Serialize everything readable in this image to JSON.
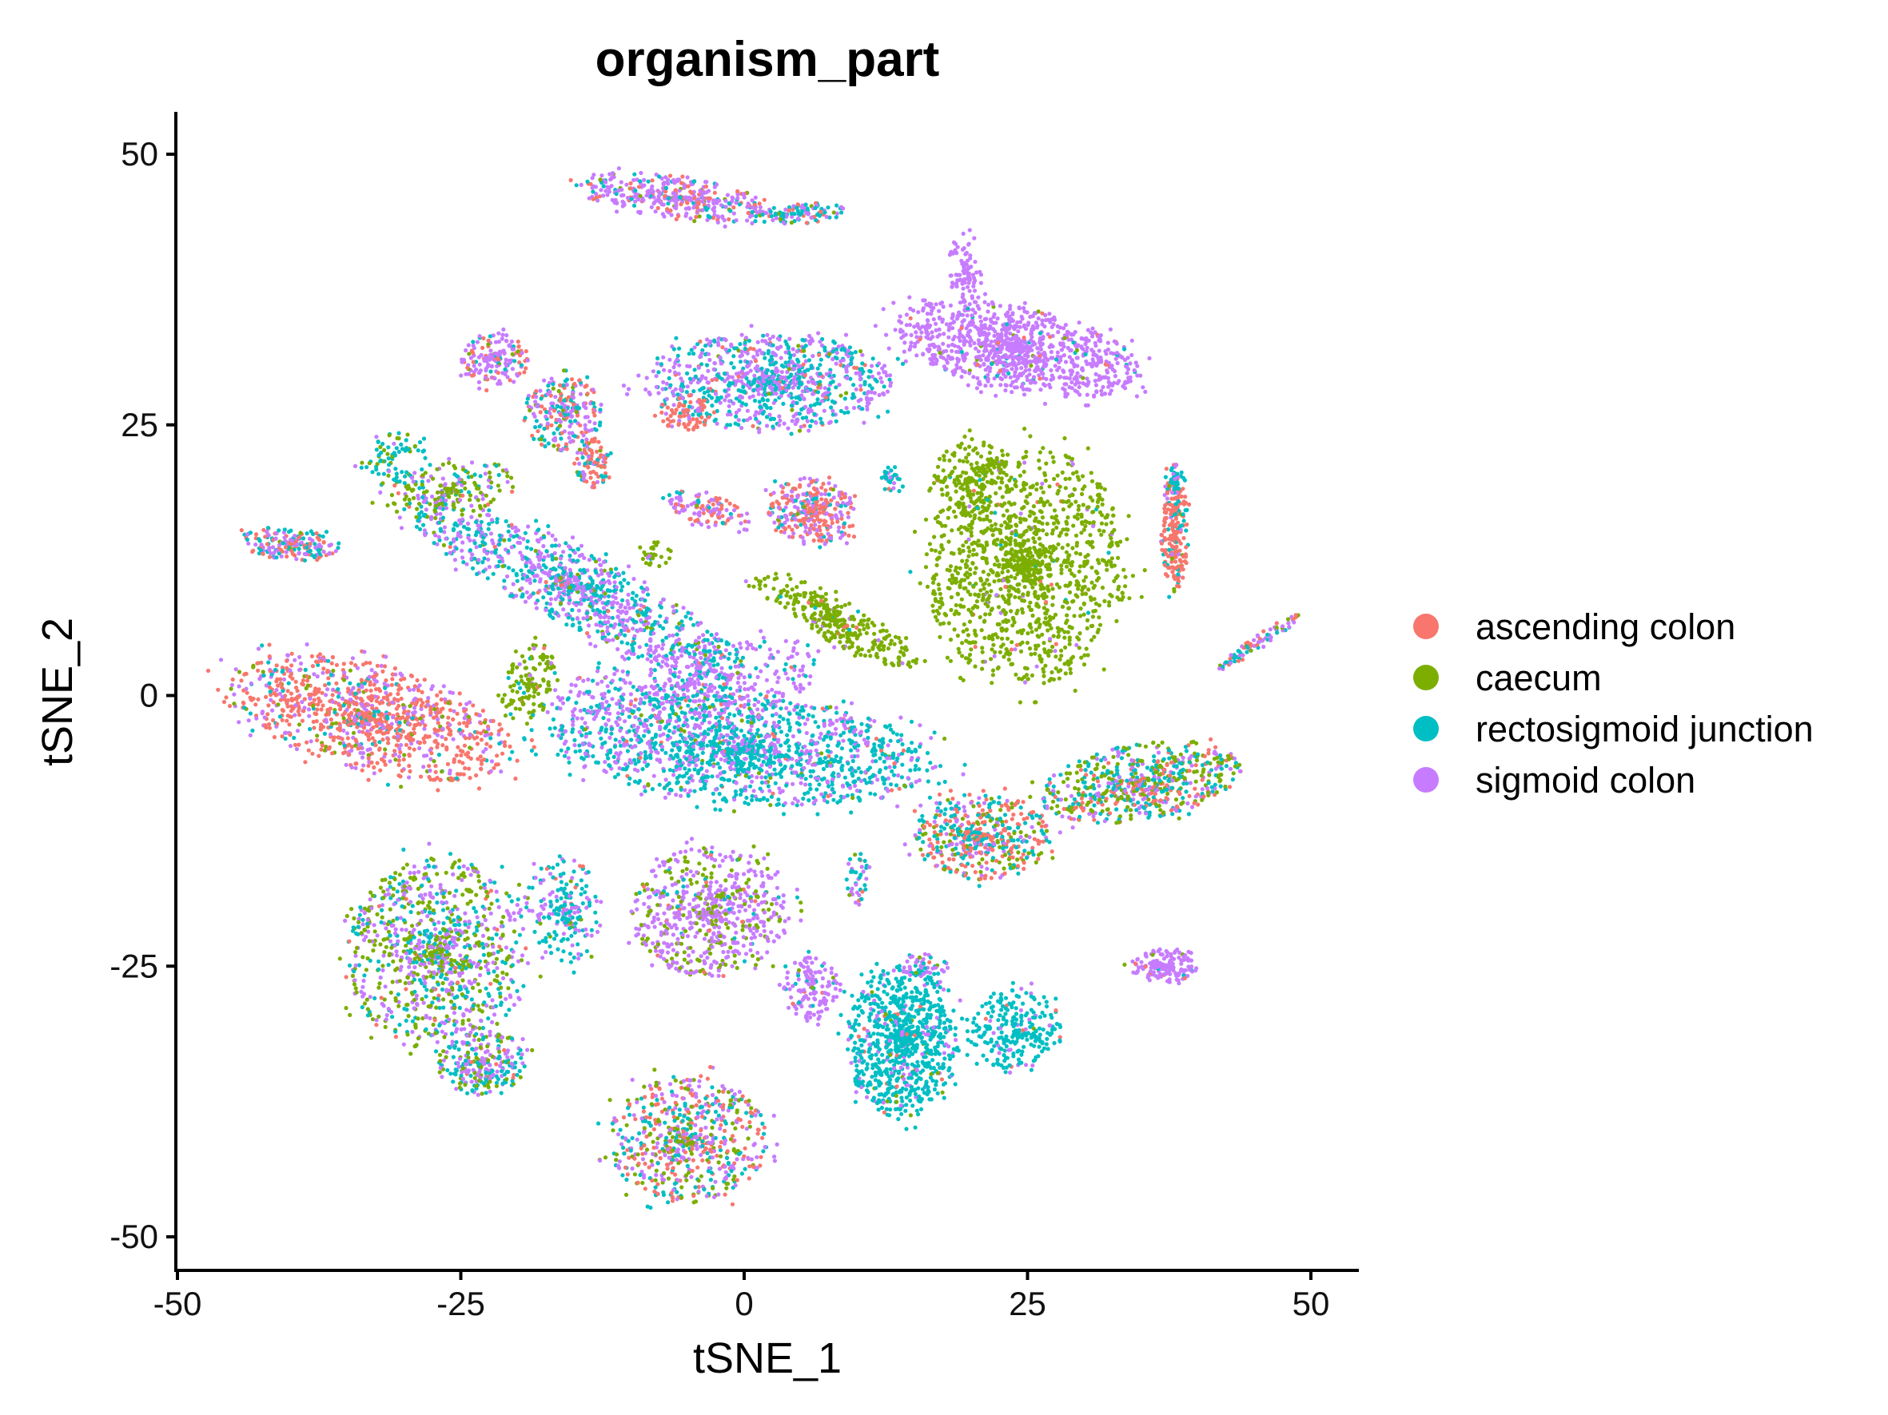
{
  "chart_data": {
    "type": "scatter",
    "title": "organism_part",
    "xlabel": "tSNE_1",
    "ylabel": "tSNE_2",
    "xlim": [
      -50,
      52
    ],
    "ylim": [
      -52,
      54
    ],
    "xticks": [
      -50,
      -25,
      0,
      25,
      50
    ],
    "yticks": [
      -50,
      -25,
      0,
      25,
      50
    ],
    "xtick_labels": [
      "-50",
      "-25",
      "0",
      "25",
      "50"
    ],
    "ytick_labels": [
      "-50",
      "-25",
      "0",
      "25",
      "50"
    ],
    "legend_position": "right",
    "grid": false,
    "series": [
      {
        "name": "ascending colon",
        "color": "#F8766D"
      },
      {
        "name": "caecum",
        "color": "#7CAE00"
      },
      {
        "name": "rectosigmoid junction",
        "color": "#00BFC4"
      },
      {
        "name": "sigmoid colon",
        "color": "#C77CFF"
      }
    ],
    "clusters": [
      {
        "cx": 0,
        "cy": -5,
        "rx": 17,
        "ry": 5,
        "rot": -5,
        "n": 1500,
        "mix": [
          0.02,
          0.03,
          0.62,
          0.33
        ]
      },
      {
        "cx": -5,
        "cy": 1,
        "rx": 12,
        "ry": 4,
        "rot": 10,
        "n": 450,
        "mix": [
          0.02,
          0.03,
          0.25,
          0.7
        ]
      },
      {
        "cx": -15,
        "cy": 10,
        "rx": 17,
        "ry": 3.5,
        "rot": -28,
        "n": 1000,
        "mix": [
          0.02,
          0.04,
          0.45,
          0.49
        ]
      },
      {
        "cx": -26,
        "cy": 19,
        "rx": 6,
        "ry": 2.5,
        "rot": 10,
        "n": 180,
        "mix": [
          0.04,
          0.6,
          0.16,
          0.2
        ]
      },
      {
        "cx": -31,
        "cy": 22,
        "rx": 3,
        "ry": 2.5,
        "rot": 0,
        "n": 80,
        "mix": [
          0.02,
          0.2,
          0.68,
          0.1
        ]
      },
      {
        "cx": -33,
        "cy": -2,
        "rx": 13,
        "ry": 5,
        "rot": -15,
        "n": 1100,
        "mix": [
          0.62,
          0.07,
          0.08,
          0.23
        ]
      },
      {
        "cx": -19,
        "cy": 1,
        "rx": 2.2,
        "ry": 4,
        "rot": -20,
        "n": 130,
        "mix": [
          0.02,
          0.9,
          0.03,
          0.05
        ]
      },
      {
        "cx": 8,
        "cy": 7,
        "rx": 8,
        "ry": 2,
        "rot": -30,
        "n": 330,
        "mix": [
          0.01,
          0.94,
          0.02,
          0.03
        ]
      },
      {
        "cx": -8,
        "cy": 13,
        "rx": 1.5,
        "ry": 1.2,
        "rot": 0,
        "n": 30,
        "mix": [
          0,
          0.9,
          0.05,
          0.05
        ]
      },
      {
        "cx": 25,
        "cy": 12,
        "rx": 9,
        "ry": 11,
        "rot": 0,
        "n": 1300,
        "mix": [
          0.01,
          0.96,
          0.01,
          0.02
        ]
      },
      {
        "cx": 20,
        "cy": 20,
        "rx": 3.5,
        "ry": 4,
        "rot": 10,
        "n": 170,
        "mix": [
          0.01,
          0.95,
          0.02,
          0.02
        ]
      },
      {
        "cx": 24,
        "cy": 32,
        "rx": 11,
        "ry": 4,
        "rot": -12,
        "n": 1000,
        "mix": [
          0.01,
          0.01,
          0.02,
          0.96
        ]
      },
      {
        "cx": 19.5,
        "cy": 39,
        "rx": 1.5,
        "ry": 4,
        "rot": 0,
        "n": 90,
        "mix": [
          0,
          0,
          0.02,
          0.98
        ]
      },
      {
        "cx": 2,
        "cy": 29,
        "rx": 11,
        "ry": 4.5,
        "rot": 0,
        "n": 900,
        "mix": [
          0.05,
          0.03,
          0.4,
          0.52
        ]
      },
      {
        "cx": -5,
        "cy": 26,
        "rx": 2.5,
        "ry": 1.5,
        "rot": 0,
        "n": 70,
        "mix": [
          0.75,
          0.02,
          0.05,
          0.18
        ]
      },
      {
        "cx": -6,
        "cy": 46,
        "rx": 9,
        "ry": 2,
        "rot": -8,
        "n": 400,
        "mix": [
          0.2,
          0.03,
          0.12,
          0.65
        ]
      },
      {
        "cx": 5,
        "cy": 44.5,
        "rx": 4,
        "ry": 1,
        "rot": 5,
        "n": 100,
        "mix": [
          0.1,
          0.05,
          0.55,
          0.3
        ]
      },
      {
        "cx": -16,
        "cy": 26,
        "rx": 3.5,
        "ry": 3.5,
        "rot": 0,
        "n": 250,
        "mix": [
          0.25,
          0.08,
          0.32,
          0.35
        ]
      },
      {
        "cx": -13.5,
        "cy": 21.5,
        "rx": 1.6,
        "ry": 2.3,
        "rot": 0,
        "n": 90,
        "mix": [
          0.65,
          0.05,
          0.15,
          0.15
        ]
      },
      {
        "cx": -22,
        "cy": 31,
        "rx": 3,
        "ry": 2.5,
        "rot": 0,
        "n": 170,
        "mix": [
          0.2,
          0.04,
          0.1,
          0.66
        ]
      },
      {
        "cx": -40,
        "cy": 14,
        "rx": 4.5,
        "ry": 1.5,
        "rot": -5,
        "n": 190,
        "mix": [
          0.32,
          0.07,
          0.38,
          0.23
        ]
      },
      {
        "cx": 6,
        "cy": 17,
        "rx": 4,
        "ry": 3,
        "rot": -15,
        "n": 320,
        "mix": [
          0.45,
          0.03,
          0.1,
          0.42
        ]
      },
      {
        "cx": -3,
        "cy": 17,
        "rx": 4,
        "ry": 1.5,
        "rot": -20,
        "n": 120,
        "mix": [
          0.4,
          0.03,
          0.1,
          0.47
        ]
      },
      {
        "cx": 38,
        "cy": 15,
        "rx": 1.2,
        "ry": 5.5,
        "rot": 0,
        "n": 220,
        "mix": [
          0.75,
          0.04,
          0.15,
          0.06
        ]
      },
      {
        "cx": 45.5,
        "cy": 5,
        "rx": 4.5,
        "ry": 0.6,
        "rot": 35,
        "n": 90,
        "mix": [
          0.2,
          0.1,
          0.3,
          0.4
        ]
      },
      {
        "cx": 35,
        "cy": -8,
        "rx": 9,
        "ry": 3.5,
        "rot": 10,
        "n": 650,
        "mix": [
          0.18,
          0.32,
          0.32,
          0.18
        ]
      },
      {
        "cx": 21,
        "cy": -13,
        "rx": 6,
        "ry": 4,
        "rot": 0,
        "n": 500,
        "mix": [
          0.42,
          0.15,
          0.3,
          0.13
        ]
      },
      {
        "cx": 14,
        "cy": -32,
        "rx": 5,
        "ry": 7,
        "rot": 0,
        "n": 850,
        "mix": [
          0.02,
          0.02,
          0.85,
          0.11
        ]
      },
      {
        "cx": 24,
        "cy": -31,
        "rx": 4,
        "ry": 4,
        "rot": 0,
        "n": 260,
        "mix": [
          0.02,
          0.02,
          0.88,
          0.08
        ]
      },
      {
        "cx": 6,
        "cy": -27,
        "rx": 2.5,
        "ry": 3,
        "rot": 0,
        "n": 140,
        "mix": [
          0.02,
          0.03,
          0.15,
          0.8
        ]
      },
      {
        "cx": 16,
        "cy": -25,
        "rx": 2,
        "ry": 1.2,
        "rot": 0,
        "n": 40,
        "mix": [
          0.02,
          0.03,
          0.15,
          0.8
        ]
      },
      {
        "cx": 37,
        "cy": -25,
        "rx": 3,
        "ry": 1.5,
        "rot": 0,
        "n": 160,
        "mix": [
          0.02,
          0.05,
          0.03,
          0.9
        ]
      },
      {
        "cx": -3,
        "cy": -20,
        "rx": 7,
        "ry": 6,
        "rot": 0,
        "n": 650,
        "mix": [
          0.02,
          0.3,
          0.05,
          0.63
        ]
      },
      {
        "cx": -5,
        "cy": -41,
        "rx": 7,
        "ry": 6,
        "rot": 0,
        "n": 650,
        "mix": [
          0.26,
          0.22,
          0.24,
          0.28
        ]
      },
      {
        "cx": -27,
        "cy": -24,
        "rx": 8,
        "ry": 9,
        "rot": 0,
        "n": 1000,
        "mix": [
          0.03,
          0.38,
          0.26,
          0.33
        ]
      },
      {
        "cx": -16,
        "cy": -20,
        "rx": 3.5,
        "ry": 5,
        "rot": 0,
        "n": 200,
        "mix": [
          0.02,
          0.05,
          0.6,
          0.33
        ]
      },
      {
        "cx": -23,
        "cy": -34,
        "rx": 4,
        "ry": 3,
        "rot": 0,
        "n": 250,
        "mix": [
          0.02,
          0.25,
          0.45,
          0.28
        ]
      },
      {
        "cx": 10,
        "cy": -17,
        "rx": 1,
        "ry": 2.5,
        "rot": 0,
        "n": 40,
        "mix": [
          0.02,
          0.02,
          0.5,
          0.46
        ]
      },
      {
        "cx": 38,
        "cy": 20,
        "rx": 1,
        "ry": 1.5,
        "rot": 0,
        "n": 40,
        "mix": [
          0.1,
          0.1,
          0.6,
          0.2
        ]
      },
      {
        "cx": 13,
        "cy": 20,
        "rx": 1,
        "ry": 1.2,
        "rot": 0,
        "n": 30,
        "mix": [
          0.02,
          0.02,
          0.8,
          0.16
        ]
      }
    ]
  }
}
